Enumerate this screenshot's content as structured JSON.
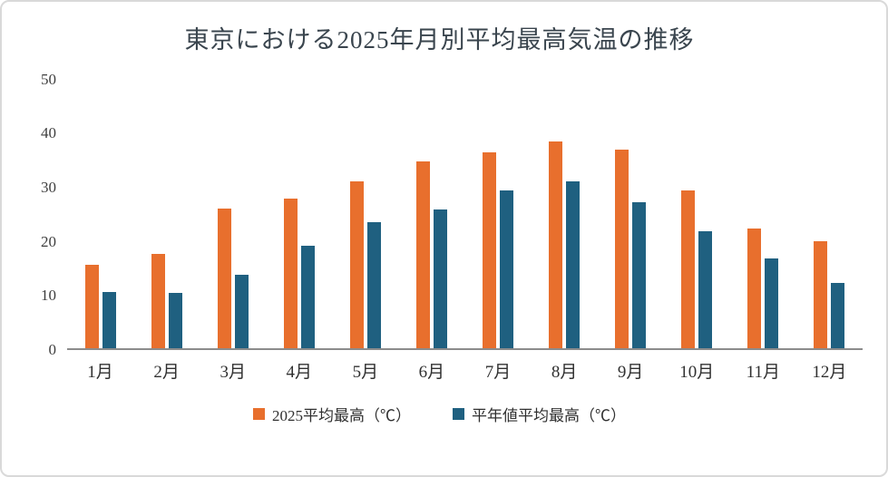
{
  "title": "東京における2025年月別平均最高気温の推移",
  "colors": {
    "series_2025": "#e86f2d",
    "series_normal": "#1f6080",
    "axis_line": "#8c8c8c",
    "title_text": "#3a454e"
  },
  "chart_data": {
    "type": "bar",
    "title": "東京における2025年月別平均最高気温の推移",
    "categories": [
      "1月",
      "2月",
      "3月",
      "4月",
      "5月",
      "6月",
      "7月",
      "8月",
      "9月",
      "10月",
      "11月",
      "12月"
    ],
    "series": [
      {
        "name": "2025平均最高（℃）",
        "color": "#e86f2d",
        "values": [
          15.5,
          17.6,
          25.9,
          27.9,
          31.1,
          34.8,
          36.4,
          38.5,
          37.0,
          29.3,
          22.3,
          19.9
        ]
      },
      {
        "name": "平年値平均最高（℃）",
        "color": "#1f6080",
        "values": [
          10.4,
          10.3,
          13.6,
          19.0,
          23.4,
          25.8,
          29.4,
          31.0,
          27.2,
          21.8,
          16.7,
          12.1
        ]
      }
    ],
    "xlabel": "",
    "ylabel": "",
    "ylim": [
      0,
      50
    ],
    "yticks": [
      0,
      10,
      20,
      30,
      40,
      50
    ],
    "grid": false,
    "legend_position": "bottom"
  }
}
